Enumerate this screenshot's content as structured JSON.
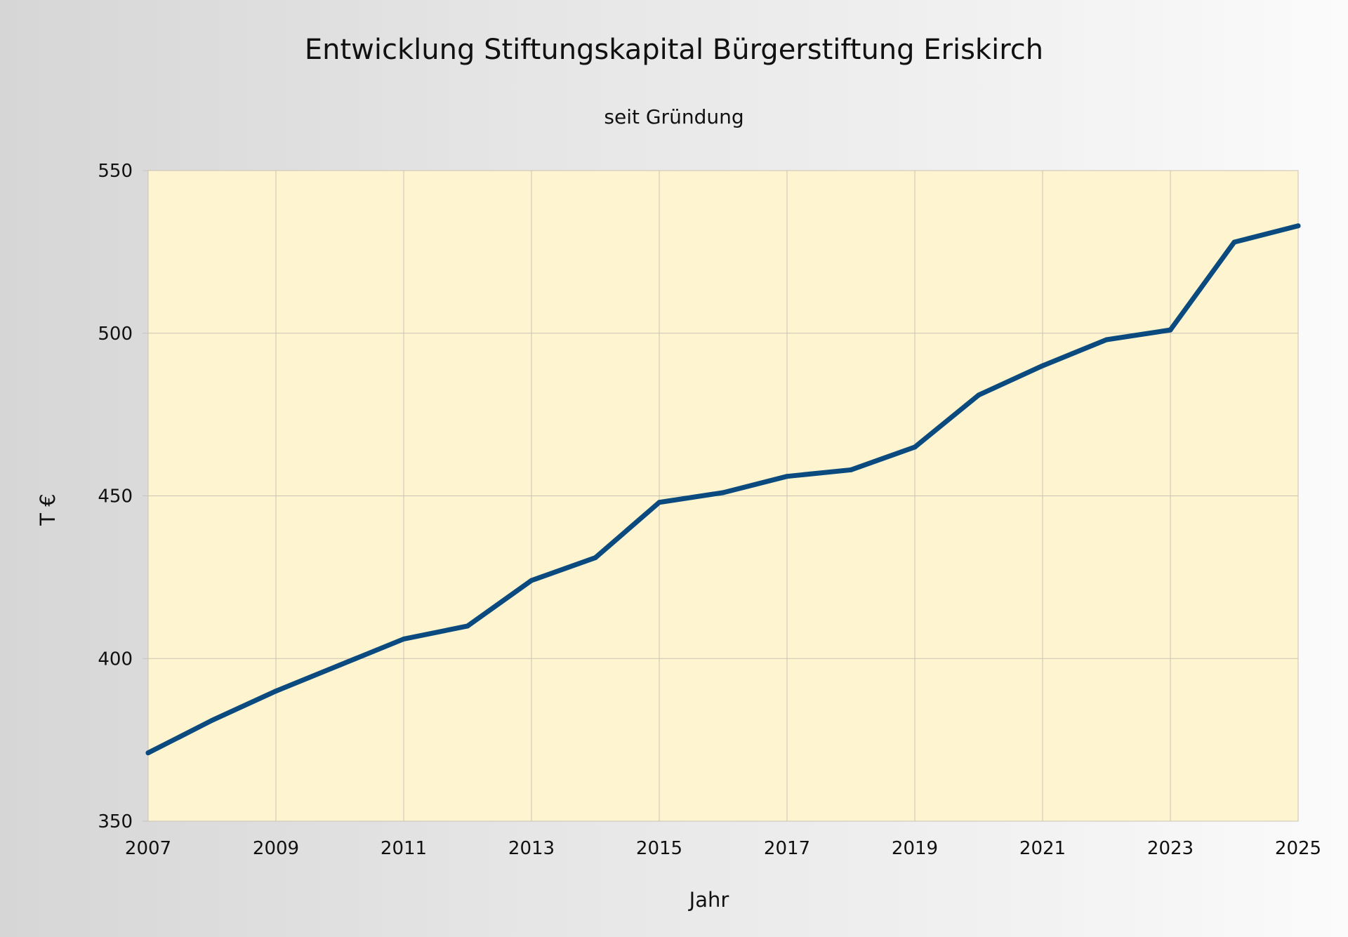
{
  "colors": {
    "plot_background": "#fef5d0",
    "grid": "#c8c4b4",
    "line": "#0b4a7f"
  },
  "chart_data": {
    "type": "line",
    "title": "Entwicklung Stiftungskapital Bürgerstiftung Eriskirch",
    "subtitle": "seit Gründung",
    "xlabel": "Jahr",
    "ylabel": "T €",
    "x": [
      2007,
      2008,
      2009,
      2010,
      2011,
      2012,
      2013,
      2014,
      2015,
      2016,
      2017,
      2018,
      2019,
      2020,
      2021,
      2022,
      2023,
      2024,
      2025
    ],
    "series": [
      {
        "values": [
          371,
          381,
          390,
          398,
          406,
          410,
          424,
          431,
          448,
          451,
          456,
          458,
          465,
          481,
          490,
          498,
          501,
          528,
          533
        ]
      }
    ],
    "xlim": [
      2007,
      2025
    ],
    "ylim": [
      350,
      550
    ],
    "xticks": [
      "2007",
      "2009",
      "2011",
      "2013",
      "2015",
      "2017",
      "2019",
      "2021",
      "2023",
      "2025"
    ],
    "yticks": [
      "350",
      "400",
      "450",
      "500",
      "550"
    ],
    "grid": true,
    "legend": "none"
  }
}
